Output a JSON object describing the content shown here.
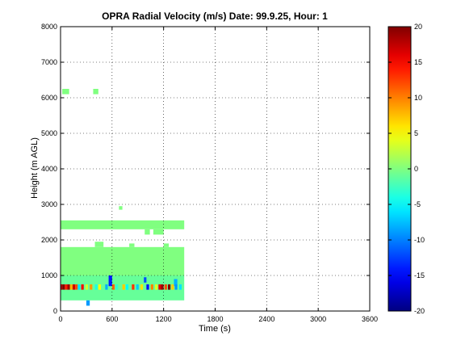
{
  "chart_data": {
    "type": "heatmap",
    "title": "OPRA Radial Velocity (m/s)  Date: 99.9.25, Hour: 1",
    "xlabel": "Time (s)",
    "ylabel": "Height (m AGL)",
    "xlim": [
      0,
      3600
    ],
    "ylim": [
      0,
      8000
    ],
    "xticks": [
      0,
      600,
      1200,
      1800,
      2400,
      3000,
      3600
    ],
    "yticks": [
      0,
      1000,
      2000,
      3000,
      4000,
      5000,
      6000,
      7000,
      8000
    ],
    "grid": true,
    "colormap": "jet",
    "colorbar": {
      "clim": [
        -20,
        20
      ],
      "ticks": [
        -20,
        -15,
        -10,
        -5,
        0,
        5,
        10,
        15,
        20
      ]
    },
    "cells": [
      {
        "x0": 0,
        "x1": 1440,
        "y0": 2300,
        "y1": 2550,
        "v": 0
      },
      {
        "x0": 20,
        "x1": 100,
        "y0": 6100,
        "y1": 6250,
        "v": 0
      },
      {
        "x0": 380,
        "x1": 440,
        "y0": 6100,
        "y1": 6250,
        "v": 0
      },
      {
        "x0": 680,
        "x1": 720,
        "y0": 2850,
        "y1": 2950,
        "v": 0
      },
      {
        "x0": 980,
        "x1": 1040,
        "y0": 2150,
        "y1": 2300,
        "v": 0
      },
      {
        "x0": 1080,
        "x1": 1200,
        "y0": 2150,
        "y1": 2300,
        "v": 0
      },
      {
        "x0": 0,
        "x1": 1440,
        "y0": 1000,
        "y1": 1800,
        "v": 0
      },
      {
        "x0": 0,
        "x1": 1440,
        "y0": 300,
        "y1": 1000,
        "v": -1
      },
      {
        "x0": 400,
        "x1": 500,
        "y0": 1800,
        "y1": 1950,
        "v": 0
      },
      {
        "x0": 800,
        "x1": 860,
        "y0": 1800,
        "y1": 1900,
        "v": 0
      },
      {
        "x0": 1200,
        "x1": 1260,
        "y0": 1800,
        "y1": 1900,
        "v": 0
      },
      {
        "x0": 300,
        "x1": 340,
        "y0": 150,
        "y1": 300,
        "v": -9
      },
      {
        "x0": 560,
        "x1": 600,
        "y0": 700,
        "y1": 1000,
        "v": -14
      },
      {
        "x0": 970,
        "x1": 1000,
        "y0": 800,
        "y1": 950,
        "v": -12
      },
      {
        "x0": 1320,
        "x1": 1360,
        "y0": 700,
        "y1": 900,
        "v": -8
      },
      {
        "x0": 0,
        "x1": 20,
        "y0": 600,
        "y1": 750,
        "v": 18
      },
      {
        "x0": 20,
        "x1": 50,
        "y0": 600,
        "y1": 750,
        "v": 20
      },
      {
        "x0": 50,
        "x1": 80,
        "y0": 600,
        "y1": 750,
        "v": 14
      },
      {
        "x0": 80,
        "x1": 110,
        "y0": 600,
        "y1": 750,
        "v": 19
      },
      {
        "x0": 110,
        "x1": 140,
        "y0": 600,
        "y1": 750,
        "v": 8
      },
      {
        "x0": 140,
        "x1": 170,
        "y0": 600,
        "y1": 750,
        "v": 17
      },
      {
        "x0": 170,
        "x1": 200,
        "y0": 600,
        "y1": 750,
        "v": 12
      },
      {
        "x0": 200,
        "x1": 230,
        "y0": 600,
        "y1": 750,
        "v": -6
      },
      {
        "x0": 240,
        "x1": 270,
        "y0": 600,
        "y1": 750,
        "v": 15
      },
      {
        "x0": 290,
        "x1": 320,
        "y0": 600,
        "y1": 750,
        "v": 3
      },
      {
        "x0": 340,
        "x1": 370,
        "y0": 600,
        "y1": 750,
        "v": 9
      },
      {
        "x0": 400,
        "x1": 430,
        "y0": 600,
        "y1": 750,
        "v": -4
      },
      {
        "x0": 440,
        "x1": 470,
        "y0": 600,
        "y1": 750,
        "v": 5
      },
      {
        "x0": 520,
        "x1": 550,
        "y0": 600,
        "y1": 750,
        "v": -8
      },
      {
        "x0": 600,
        "x1": 630,
        "y0": 600,
        "y1": 750,
        "v": 11
      },
      {
        "x0": 640,
        "x1": 670,
        "y0": 600,
        "y1": 750,
        "v": -3
      },
      {
        "x0": 720,
        "x1": 750,
        "y0": 600,
        "y1": 750,
        "v": 7
      },
      {
        "x0": 760,
        "x1": 790,
        "y0": 600,
        "y1": 750,
        "v": -5
      },
      {
        "x0": 830,
        "x1": 860,
        "y0": 600,
        "y1": 750,
        "v": 13
      },
      {
        "x0": 880,
        "x1": 910,
        "y0": 600,
        "y1": 750,
        "v": -7
      },
      {
        "x0": 930,
        "x1": 960,
        "y0": 600,
        "y1": 750,
        "v": 6
      },
      {
        "x0": 1000,
        "x1": 1030,
        "y0": 600,
        "y1": 750,
        "v": -15
      },
      {
        "x0": 1050,
        "x1": 1080,
        "y0": 600,
        "y1": 750,
        "v": 10
      },
      {
        "x0": 1100,
        "x1": 1130,
        "y0": 600,
        "y1": 750,
        "v": 4
      },
      {
        "x0": 1140,
        "x1": 1170,
        "y0": 600,
        "y1": 750,
        "v": 16
      },
      {
        "x0": 1170,
        "x1": 1200,
        "y0": 600,
        "y1": 750,
        "v": 19
      },
      {
        "x0": 1210,
        "x1": 1240,
        "y0": 600,
        "y1": 750,
        "v": 12
      },
      {
        "x0": 1250,
        "x1": 1280,
        "y0": 600,
        "y1": 750,
        "v": 20
      },
      {
        "x0": 1290,
        "x1": 1320,
        "y0": 600,
        "y1": 750,
        "v": 7
      },
      {
        "x0": 1330,
        "x1": 1360,
        "y0": 600,
        "y1": 750,
        "v": -9
      },
      {
        "x0": 1380,
        "x1": 1410,
        "y0": 600,
        "y1": 750,
        "v": -6
      }
    ]
  }
}
